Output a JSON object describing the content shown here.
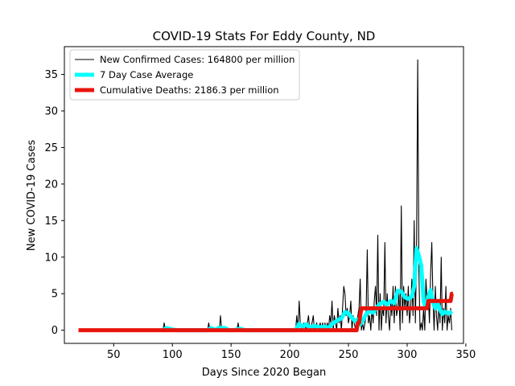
{
  "chart_data": {
    "type": "line",
    "title": "COVID-19 Stats For Eddy County, ND",
    "xlabel": "Days Since 2020 Began",
    "ylabel": "New COVID-19 Cases",
    "xlim": [
      8,
      348
    ],
    "ylim": [
      -1.8,
      38.8
    ],
    "xticks": [
      50,
      100,
      150,
      200,
      250,
      300,
      350
    ],
    "yticks": [
      0,
      5,
      10,
      15,
      20,
      25,
      30,
      35
    ],
    "legend_position": "top-left",
    "series": [
      {
        "name": "New Confirmed Cases: 164800 per million",
        "color": "#000000",
        "style": "thin",
        "points": [
          [
            20,
            0
          ],
          [
            92,
            0
          ],
          [
            93,
            1
          ],
          [
            94,
            0
          ],
          [
            100,
            0
          ],
          [
            130,
            0
          ],
          [
            131,
            1
          ],
          [
            132,
            0
          ],
          [
            140,
            0
          ],
          [
            141,
            2
          ],
          [
            142,
            0
          ],
          [
            148,
            0
          ],
          [
            149,
            0
          ],
          [
            150,
            0
          ],
          [
            155,
            0
          ],
          [
            156,
            1
          ],
          [
            157,
            0
          ],
          [
            205,
            0
          ],
          [
            206,
            2
          ],
          [
            207,
            0
          ],
          [
            208,
            4
          ],
          [
            209,
            1
          ],
          [
            210,
            0
          ],
          [
            212,
            1
          ],
          [
            214,
            0
          ],
          [
            216,
            2
          ],
          [
            217,
            0
          ],
          [
            219,
            1
          ],
          [
            220,
            2
          ],
          [
            221,
            0
          ],
          [
            223,
            1
          ],
          [
            224,
            0
          ],
          [
            226,
            1
          ],
          [
            227,
            0
          ],
          [
            228,
            1
          ],
          [
            229,
            0
          ],
          [
            230,
            1
          ],
          [
            231,
            0
          ],
          [
            232,
            1
          ],
          [
            233,
            0
          ],
          [
            234,
            2
          ],
          [
            235,
            1
          ],
          [
            236,
            4
          ],
          [
            237,
            0
          ],
          [
            238,
            2
          ],
          [
            239,
            1
          ],
          [
            240,
            0
          ],
          [
            241,
            3
          ],
          [
            242,
            1
          ],
          [
            243,
            2
          ],
          [
            244,
            0
          ],
          [
            245,
            3
          ],
          [
            246,
            6
          ],
          [
            247,
            5
          ],
          [
            248,
            2
          ],
          [
            249,
            3
          ],
          [
            250,
            1
          ],
          [
            251,
            2
          ],
          [
            252,
            4
          ],
          [
            253,
            0
          ],
          [
            254,
            2
          ],
          [
            255,
            1
          ],
          [
            256,
            0
          ],
          [
            257,
            1
          ],
          [
            258,
            2
          ],
          [
            259,
            3
          ],
          [
            260,
            7
          ],
          [
            261,
            0
          ],
          [
            262,
            1
          ],
          [
            263,
            0
          ],
          [
            264,
            1
          ],
          [
            265,
            2
          ],
          [
            266,
            11
          ],
          [
            267,
            1
          ],
          [
            268,
            2
          ],
          [
            269,
            0
          ],
          [
            270,
            3
          ],
          [
            271,
            1
          ],
          [
            272,
            4
          ],
          [
            273,
            6
          ],
          [
            274,
            2
          ],
          [
            275,
            13
          ],
          [
            276,
            0
          ],
          [
            277,
            5
          ],
          [
            278,
            0
          ],
          [
            279,
            3
          ],
          [
            280,
            2
          ],
          [
            281,
            12
          ],
          [
            282,
            1
          ],
          [
            283,
            5
          ],
          [
            284,
            2
          ],
          [
            285,
            0
          ],
          [
            286,
            4
          ],
          [
            287,
            2
          ],
          [
            288,
            6
          ],
          [
            289,
            1
          ],
          [
            290,
            6
          ],
          [
            291,
            2
          ],
          [
            292,
            3
          ],
          [
            293,
            5
          ],
          [
            294,
            0
          ],
          [
            295,
            17
          ],
          [
            296,
            1
          ],
          [
            297,
            6
          ],
          [
            298,
            3
          ],
          [
            299,
            5
          ],
          [
            300,
            2
          ],
          [
            301,
            6
          ],
          [
            302,
            1
          ],
          [
            303,
            3
          ],
          [
            304,
            7
          ],
          [
            305,
            2
          ],
          [
            306,
            15
          ],
          [
            307,
            1
          ],
          [
            308,
            10
          ],
          [
            309,
            37
          ],
          [
            310,
            8
          ],
          [
            311,
            0
          ],
          [
            312,
            1
          ],
          [
            313,
            0
          ],
          [
            314,
            3
          ],
          [
            315,
            0
          ],
          [
            316,
            7
          ],
          [
            317,
            4
          ],
          [
            318,
            5
          ],
          [
            319,
            1
          ],
          [
            320,
            8
          ],
          [
            321,
            12
          ],
          [
            322,
            4
          ],
          [
            323,
            0
          ],
          [
            324,
            6
          ],
          [
            325,
            2
          ],
          [
            326,
            0
          ],
          [
            327,
            4
          ],
          [
            328,
            1
          ],
          [
            329,
            10
          ],
          [
            330,
            0
          ],
          [
            331,
            3
          ],
          [
            332,
            1
          ],
          [
            333,
            6
          ],
          [
            334,
            0
          ],
          [
            335,
            2
          ],
          [
            336,
            1
          ],
          [
            337,
            3
          ],
          [
            338,
            0
          ]
        ]
      },
      {
        "name": "7 Day Case Average",
        "color": "#00ffff",
        "style": "medium",
        "points": [
          [
            92,
            0
          ],
          [
            95,
            0.3
          ],
          [
            100,
            0.1
          ],
          [
            104,
            0
          ],
          [
            130,
            0
          ],
          [
            133,
            0.3
          ],
          [
            137,
            0
          ],
          [
            139,
            0.3
          ],
          [
            145,
            0.3
          ],
          [
            148,
            0
          ],
          [
            152,
            0
          ],
          [
            158,
            0.2
          ],
          [
            162,
            0
          ],
          [
            205,
            0
          ],
          [
            208,
            0.9
          ],
          [
            211,
            0.5
          ],
          [
            214,
            0.8
          ],
          [
            217,
            0.4
          ],
          [
            221,
            0.6
          ],
          [
            225,
            0.4
          ],
          [
            230,
            0.5
          ],
          [
            233,
            0.3
          ],
          [
            237,
            1.0
          ],
          [
            241,
            1.4
          ],
          [
            244,
            1.6
          ],
          [
            247,
            2.5
          ],
          [
            250,
            2.3
          ],
          [
            253,
            1.7
          ],
          [
            256,
            1.2
          ],
          [
            258,
            1.5
          ],
          [
            260,
            0.8
          ],
          [
            262,
            1.2
          ],
          [
            265,
            2.2
          ],
          [
            268,
            2.6
          ],
          [
            271,
            2.4
          ],
          [
            274,
            3.1
          ],
          [
            277,
            3.6
          ],
          [
            280,
            3.9
          ],
          [
            283,
            3.5
          ],
          [
            286,
            4.0
          ],
          [
            289,
            3.7
          ],
          [
            292,
            5.4
          ],
          [
            295,
            5.3
          ],
          [
            298,
            4.5
          ],
          [
            301,
            4.3
          ],
          [
            304,
            4.6
          ],
          [
            306,
            6.0
          ],
          [
            308,
            11.2
          ],
          [
            310,
            10.2
          ],
          [
            312,
            8.8
          ],
          [
            314,
            4.0
          ],
          [
            316,
            3.0
          ],
          [
            318,
            4.5
          ],
          [
            320,
            5.5
          ],
          [
            322,
            3.8
          ],
          [
            324,
            3.0
          ],
          [
            326,
            3.6
          ],
          [
            328,
            2.8
          ],
          [
            330,
            2.2
          ],
          [
            332,
            2.5
          ],
          [
            334,
            2.4
          ],
          [
            336,
            2.3
          ],
          [
            338,
            2.6
          ]
        ]
      },
      {
        "name": "Cumulative Deaths: 2186.3 per million",
        "color": "#e8140c",
        "style": "thick",
        "points": [
          [
            20,
            0
          ],
          [
            255,
            0
          ],
          [
            257,
            0
          ],
          [
            258,
            1
          ],
          [
            259,
            1
          ],
          [
            260,
            2
          ],
          [
            261,
            3
          ],
          [
            316,
            3
          ],
          [
            317,
            3
          ],
          [
            318,
            4
          ],
          [
            335,
            4
          ],
          [
            337,
            4
          ],
          [
            338,
            5
          ],
          [
            339,
            5
          ]
        ]
      }
    ]
  }
}
